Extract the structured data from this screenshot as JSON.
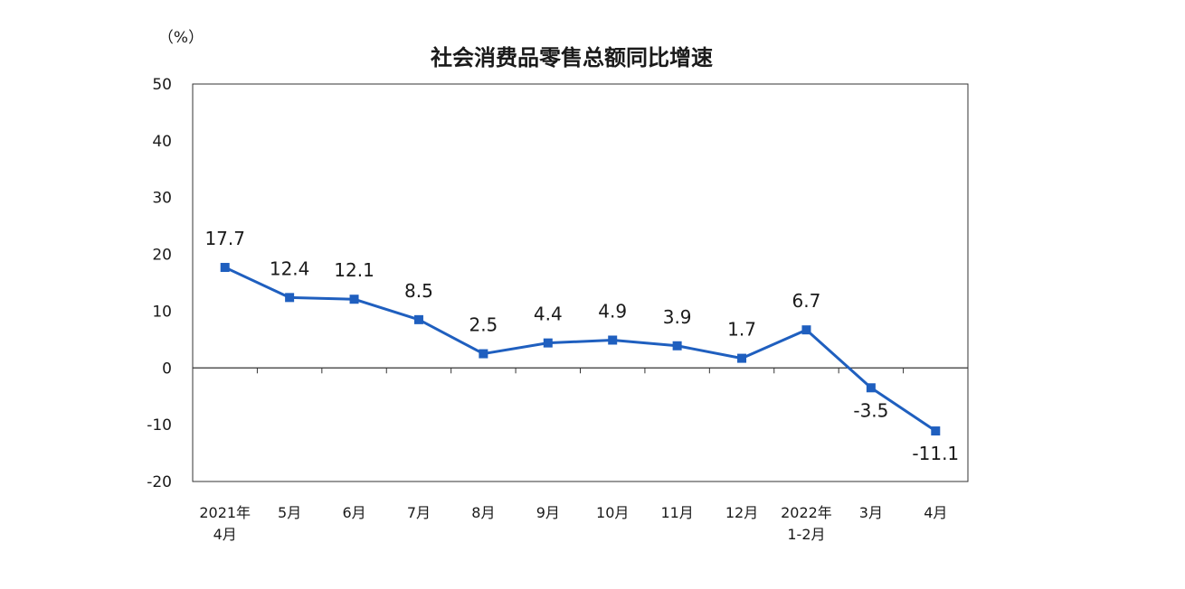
{
  "chart_data": {
    "type": "line",
    "title": "社会消费品零售总额同比增速",
    "unit_label": "（%）",
    "ylim": [
      -20,
      50
    ],
    "yticks": [
      "50",
      "40",
      "30",
      "20",
      "10",
      "0",
      "-10",
      "-20"
    ],
    "ytick_values": [
      50,
      40,
      30,
      20,
      10,
      0,
      -10,
      -20
    ],
    "categories": [
      [
        "2021年",
        "4月"
      ],
      [
        "5月"
      ],
      [
        "6月"
      ],
      [
        "7月"
      ],
      [
        "8月"
      ],
      [
        "9月"
      ],
      [
        "10月"
      ],
      [
        "11月"
      ],
      [
        "12月"
      ],
      [
        "2022年",
        "1-2月"
      ],
      [
        "3月"
      ],
      [
        "4月"
      ]
    ],
    "values": [
      17.7,
      12.4,
      12.1,
      8.5,
      2.5,
      4.4,
      4.9,
      3.9,
      1.7,
      6.7,
      -3.5,
      -11.1
    ],
    "value_labels": [
      "17.7",
      "12.4",
      "12.1",
      "8.5",
      "2.5",
      "4.4",
      "4.9",
      "3.9",
      "1.7",
      "6.7",
      "-3.5",
      "-11.1"
    ],
    "line_color": "#1f5fbf",
    "grid": false,
    "legend": "none"
  }
}
